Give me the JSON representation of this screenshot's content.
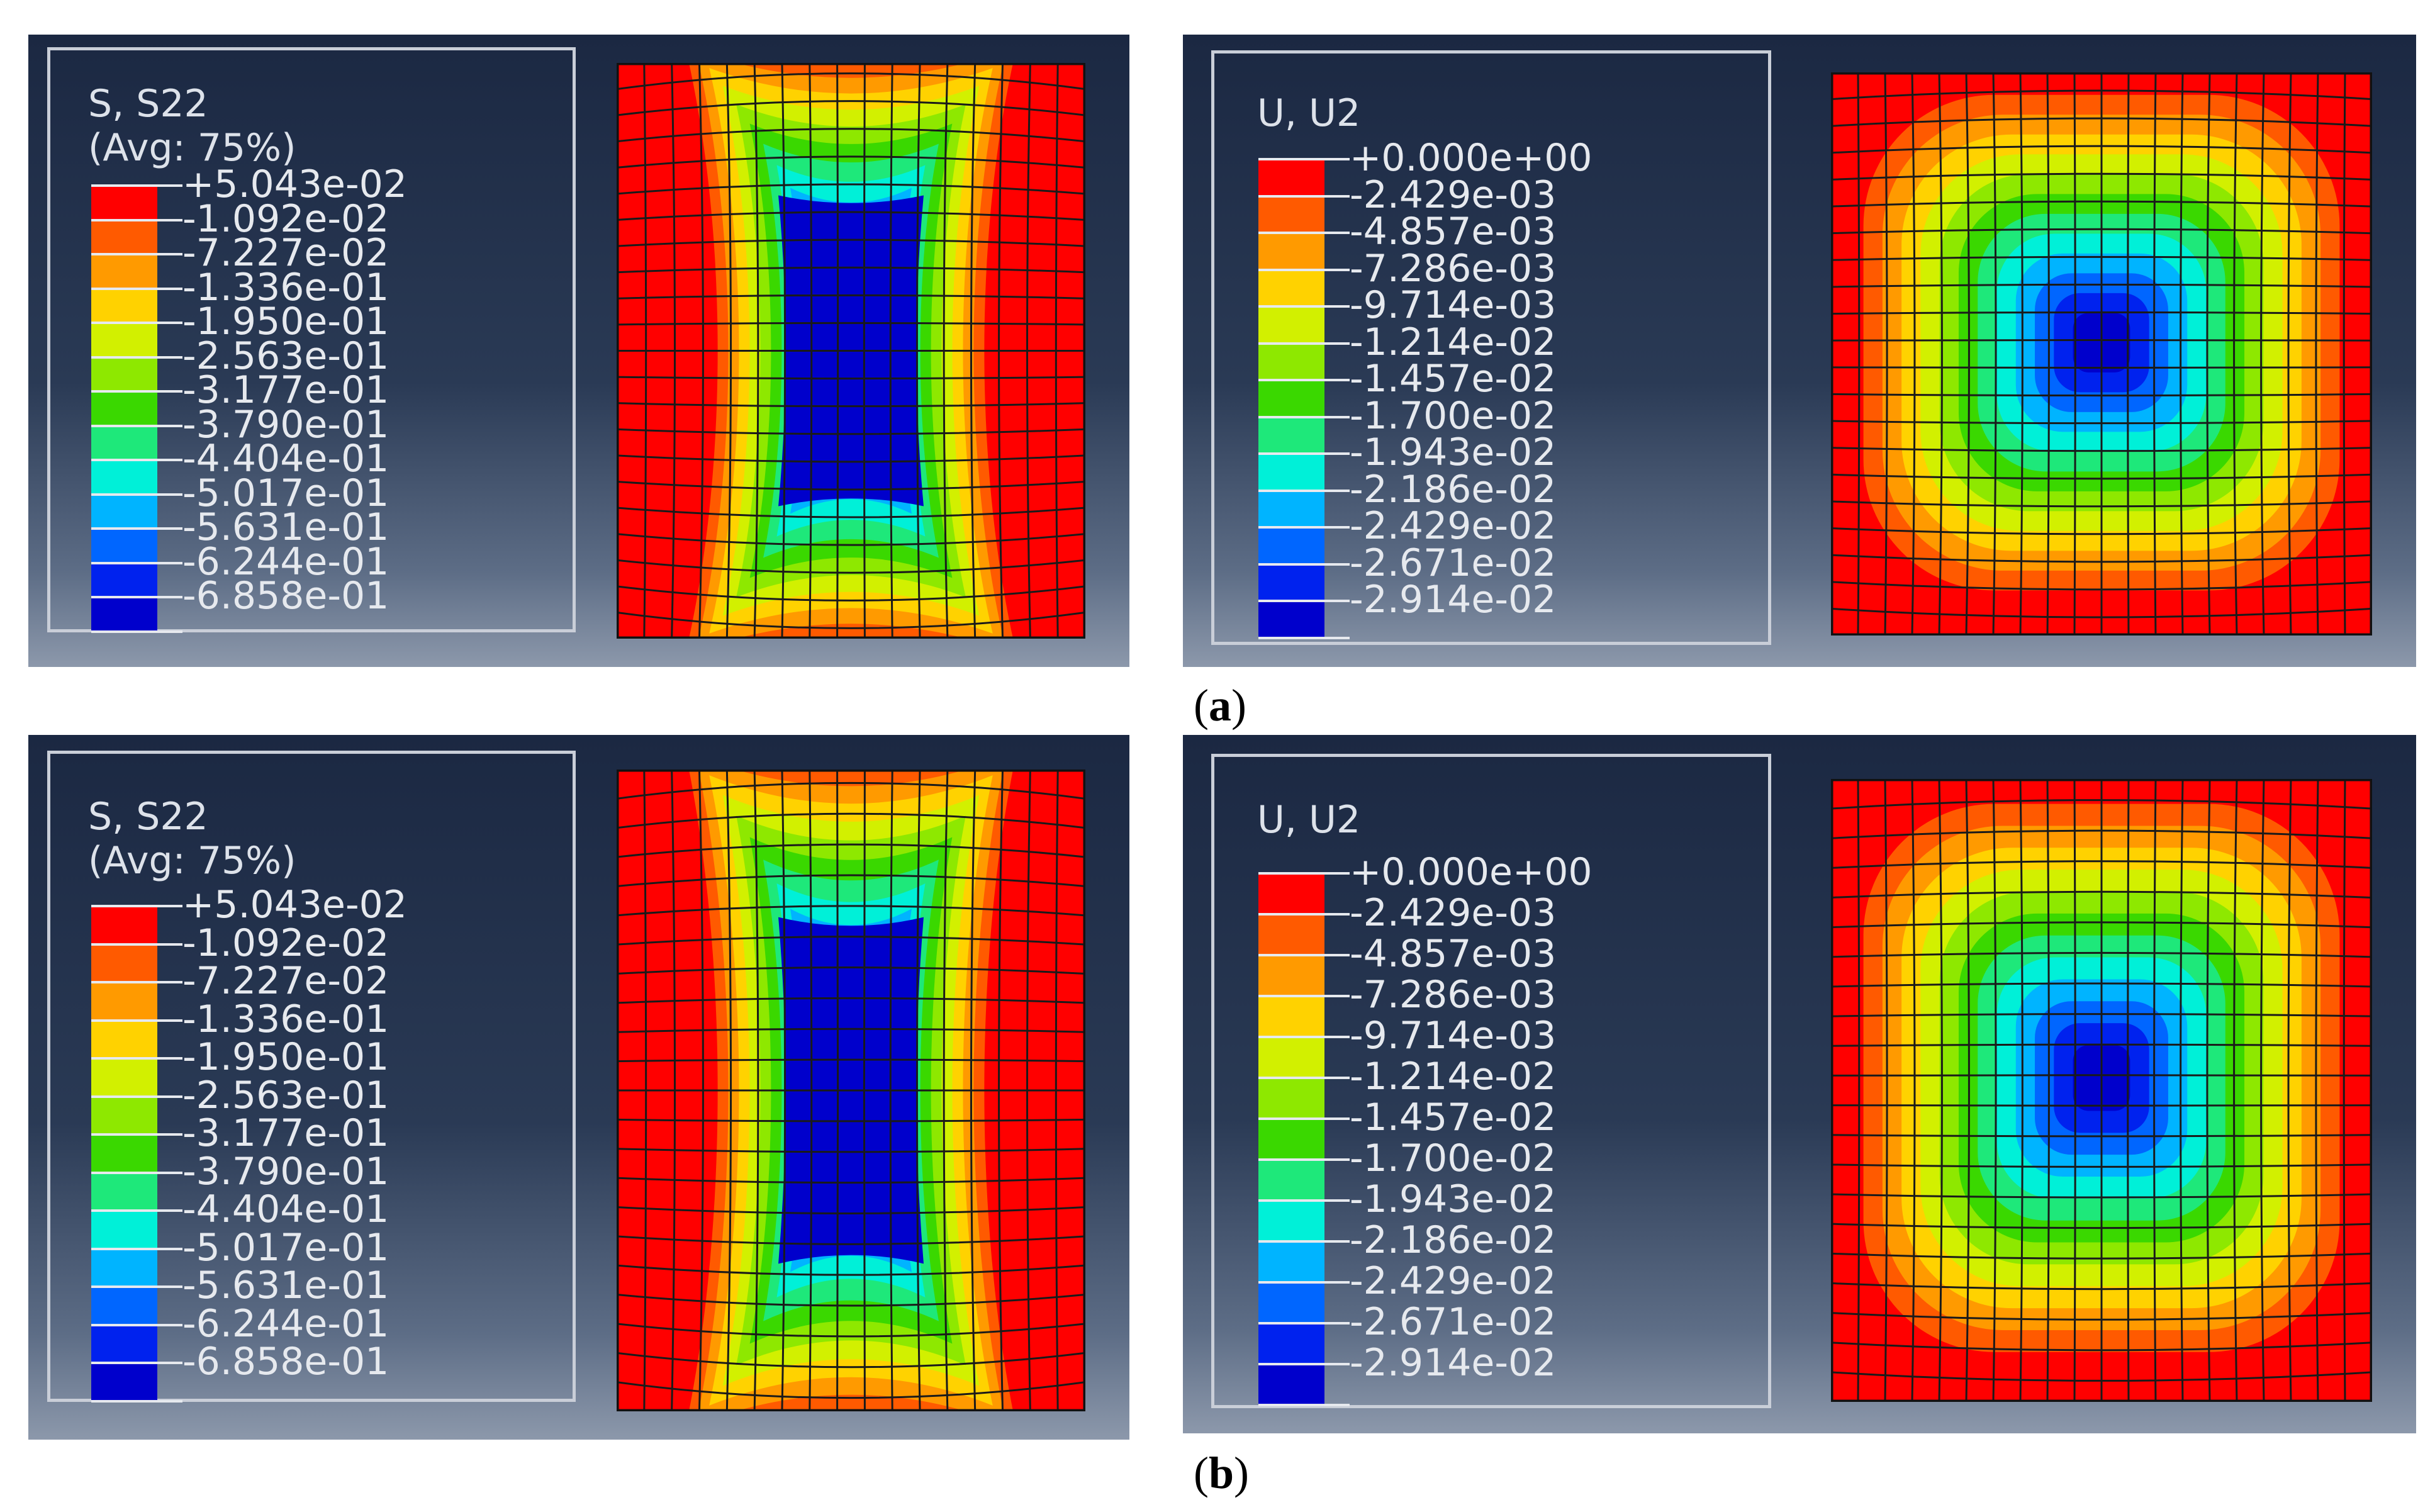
{
  "panels": [
    {
      "id": "a-stress",
      "title": "S, S22",
      "subtitle": "(Avg: 75%)",
      "labels": [
        "+5.043e-02",
        "-1.092e-02",
        "-7.227e-02",
        "-1.336e-01",
        "-1.950e-01",
        "-2.563e-01",
        "-3.177e-01",
        "-3.790e-01",
        "-4.404e-01",
        "-5.017e-01",
        "-5.631e-01",
        "-6.244e-01",
        "-6.858e-01"
      ],
      "contour": "stress"
    },
    {
      "id": "a-displacement",
      "title": "U, U2",
      "subtitle": "",
      "labels": [
        "+0.000e+00",
        "-2.429e-03",
        "-4.857e-03",
        "-7.286e-03",
        "-9.714e-03",
        "-1.214e-02",
        "-1.457e-02",
        "-1.700e-02",
        "-1.943e-02",
        "-2.186e-02",
        "-2.429e-02",
        "-2.671e-02",
        "-2.914e-02"
      ],
      "contour": "displacement"
    },
    {
      "id": "b-stress",
      "title": "S, S22",
      "subtitle": "(Avg: 75%)",
      "labels": [
        "+5.043e-02",
        "-1.092e-02",
        "-7.227e-02",
        "-1.336e-01",
        "-1.950e-01",
        "-2.563e-01",
        "-3.177e-01",
        "-3.790e-01",
        "-4.404e-01",
        "-5.017e-01",
        "-5.631e-01",
        "-6.244e-01",
        "-6.858e-01"
      ],
      "contour": "stress"
    },
    {
      "id": "b-displacement",
      "title": "U, U2",
      "subtitle": "",
      "labels": [
        "+0.000e+00",
        "-2.429e-03",
        "-4.857e-03",
        "-7.286e-03",
        "-9.714e-03",
        "-1.214e-02",
        "-1.457e-02",
        "-1.700e-02",
        "-1.943e-02",
        "-2.186e-02",
        "-2.429e-02",
        "-2.671e-02",
        "-2.914e-02"
      ],
      "contour": "displacement"
    }
  ],
  "colormap": [
    "#ff0000",
    "#ff5a00",
    "#ff9a00",
    "#ffd200",
    "#d2f000",
    "#8ee800",
    "#3ad800",
    "#1ee87a",
    "#00f0d8",
    "#00b4ff",
    "#0066ff",
    "#0022ee",
    "#0000cc"
  ],
  "captions": {
    "a": "a",
    "b": "b"
  }
}
